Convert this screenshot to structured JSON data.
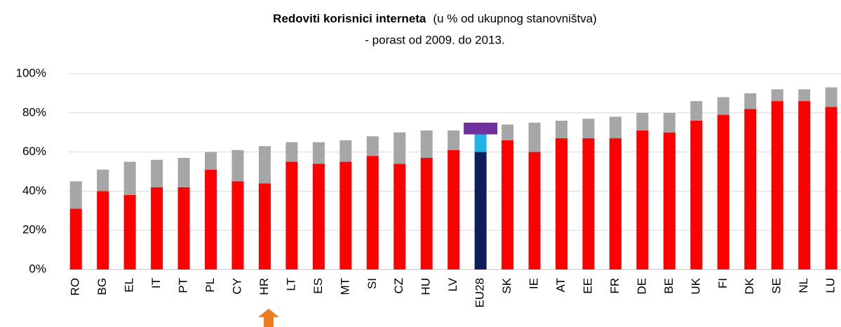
{
  "chart_data": {
    "type": "stacked_bar",
    "title": "Redoviti korisnici interneta",
    "title_note": "(u % od ukupnog stanovništva)",
    "subtitle": "- porast od 2009. do 2013.",
    "categories": [
      "RO",
      "BG",
      "EL",
      "IT",
      "PT",
      "PL",
      "CY",
      "HR",
      "LT",
      "ES",
      "MT",
      "SI",
      "CZ",
      "HU",
      "LV",
      "EU28",
      "SK",
      "IE",
      "AT",
      "EE",
      "FR",
      "DE",
      "BE",
      "UK",
      "FI",
      "DK",
      "SE",
      "NL",
      "LU"
    ],
    "series": [
      {
        "color": "#ff0000",
        "values": [
          31,
          40,
          38,
          42,
          42,
          51,
          45,
          44,
          55,
          54,
          55,
          58,
          54,
          57,
          61,
          60,
          66,
          60,
          67,
          67,
          67,
          71,
          70,
          76,
          79,
          82,
          86,
          86,
          83
        ],
        "colors": [
          "#ff0000",
          "#ff0000",
          "#ff0000",
          "#ff0000",
          "#ff0000",
          "#ff0000",
          "#ff0000",
          "#ff0000",
          "#ff0000",
          "#ff0000",
          "#ff0000",
          "#ff0000",
          "#ff0000",
          "#ff0000",
          "#ff0000",
          "#0d1e5a",
          "#ff0000",
          "#ff0000",
          "#ff0000",
          "#ff0000",
          "#ff0000",
          "#ff0000",
          "#ff0000",
          "#ff0000",
          "#ff0000",
          "#ff0000",
          "#ff0000",
          "#ff0000",
          "#ff0000"
        ]
      },
      {
        "color": "#a6a6a6",
        "values": [
          14,
          11,
          17,
          14,
          15,
          9,
          16,
          19,
          10,
          11,
          11,
          10,
          16,
          14,
          10,
          9,
          8,
          15,
          9,
          10,
          11,
          9,
          10,
          10,
          9,
          8,
          6,
          6,
          10
        ],
        "colors": [
          "#a6a6a6",
          "#a6a6a6",
          "#a6a6a6",
          "#a6a6a6",
          "#a6a6a6",
          "#a6a6a6",
          "#a6a6a6",
          "#a6a6a6",
          "#a6a6a6",
          "#a6a6a6",
          "#a6a6a6",
          "#a6a6a6",
          "#a6a6a6",
          "#a6a6a6",
          "#a6a6a6",
          "#1fb4e6",
          "#a6a6a6",
          "#a6a6a6",
          "#a6a6a6",
          "#a6a6a6",
          "#a6a6a6",
          "#a6a6a6",
          "#a6a6a6",
          "#a6a6a6",
          "#a6a6a6",
          "#a6a6a6",
          "#a6a6a6",
          "#a6a6a6",
          "#a6a6a6"
        ]
      },
      {
        "color": "#7030a0",
        "wide": true,
        "values": [
          null,
          null,
          null,
          null,
          null,
          null,
          null,
          null,
          null,
          null,
          null,
          null,
          null,
          null,
          null,
          6,
          null,
          null,
          null,
          null,
          null,
          null,
          null,
          null,
          null,
          null,
          null,
          null,
          null
        ]
      }
    ],
    "ylim": [
      0,
      100
    ],
    "yticks": [
      {
        "value": 0,
        "label": "0%"
      },
      {
        "value": 20,
        "label": "20%"
      },
      {
        "value": 40,
        "label": "40%"
      },
      {
        "value": 60,
        "label": "60%"
      },
      {
        "value": 80,
        "label": "80%"
      },
      {
        "value": 100,
        "label": "100%"
      }
    ],
    "grid": true
  }
}
